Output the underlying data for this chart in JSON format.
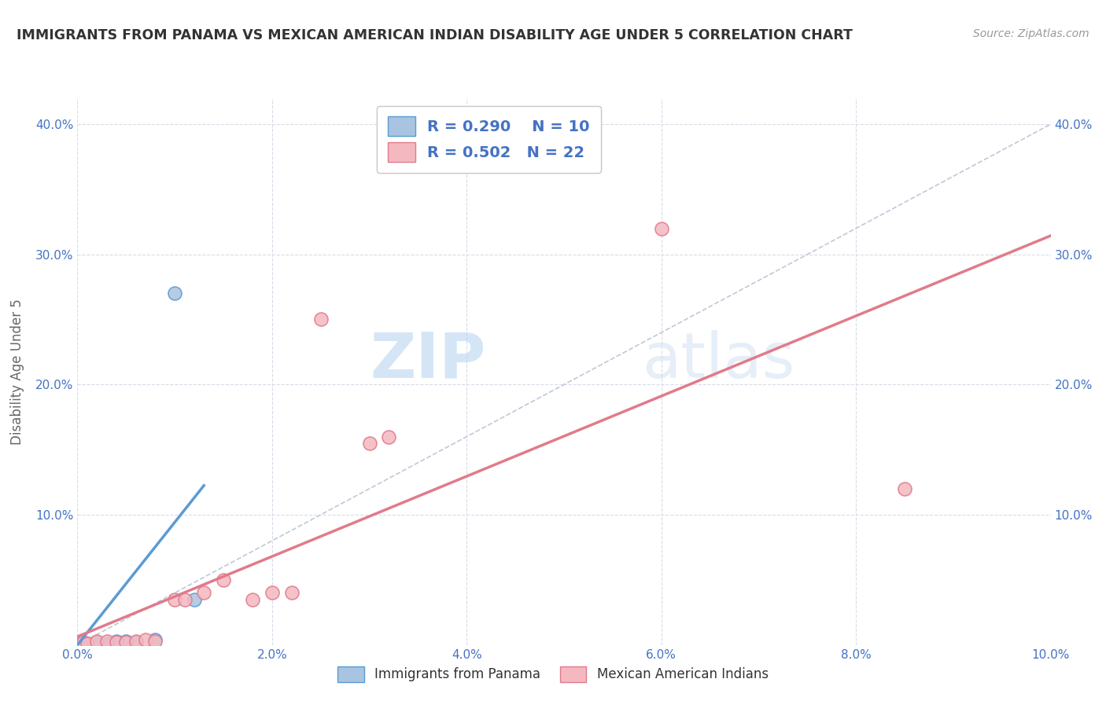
{
  "title": "IMMIGRANTS FROM PANAMA VS MEXICAN AMERICAN INDIAN DISABILITY AGE UNDER 5 CORRELATION CHART",
  "source": "Source: ZipAtlas.com",
  "ylabel": "Disability Age Under 5",
  "xlim": [
    0.0,
    0.1
  ],
  "ylim": [
    0.0,
    0.42
  ],
  "xtick_vals": [
    0.0,
    0.02,
    0.04,
    0.06,
    0.08,
    0.1
  ],
  "ytick_vals": [
    0.0,
    0.1,
    0.2,
    0.3,
    0.4
  ],
  "panama_color": "#a8c4e0",
  "panama_edge_color": "#5b9bd5",
  "mexican_color": "#f4b8c1",
  "mexican_edge_color": "#e07b8a",
  "R_panama": 0.29,
  "N_panama": 10,
  "R_mexican": 0.502,
  "N_mexican": 22,
  "panama_x": [
    0.0005,
    0.001,
    0.002,
    0.003,
    0.004,
    0.005,
    0.006,
    0.008,
    0.01,
    0.012
  ],
  "panama_y": [
    0.001,
    0.001,
    0.002,
    0.001,
    0.003,
    0.003,
    0.002,
    0.004,
    0.27,
    0.035
  ],
  "mexican_x": [
    0.0003,
    0.0006,
    0.001,
    0.002,
    0.003,
    0.004,
    0.005,
    0.006,
    0.007,
    0.008,
    0.01,
    0.011,
    0.013,
    0.015,
    0.018,
    0.02,
    0.022,
    0.025,
    0.03,
    0.032,
    0.06,
    0.085
  ],
  "mexican_y": [
    0.001,
    0.002,
    0.001,
    0.003,
    0.003,
    0.002,
    0.002,
    0.003,
    0.004,
    0.003,
    0.035,
    0.035,
    0.04,
    0.05,
    0.035,
    0.04,
    0.04,
    0.25,
    0.155,
    0.16,
    0.32,
    0.12
  ],
  "diagonal_color": "#c0c8d8",
  "panama_line_color": "#5b9bd5",
  "mexican_line_color": "#e07b8a",
  "watermark_zip": "ZIP",
  "watermark_atlas": "atlas",
  "background_color": "#ffffff",
  "grid_color": "#d8dce8",
  "legend_text_color": "#4472c4",
  "title_color": "#333333",
  "right_axis_color": "#4472c4"
}
